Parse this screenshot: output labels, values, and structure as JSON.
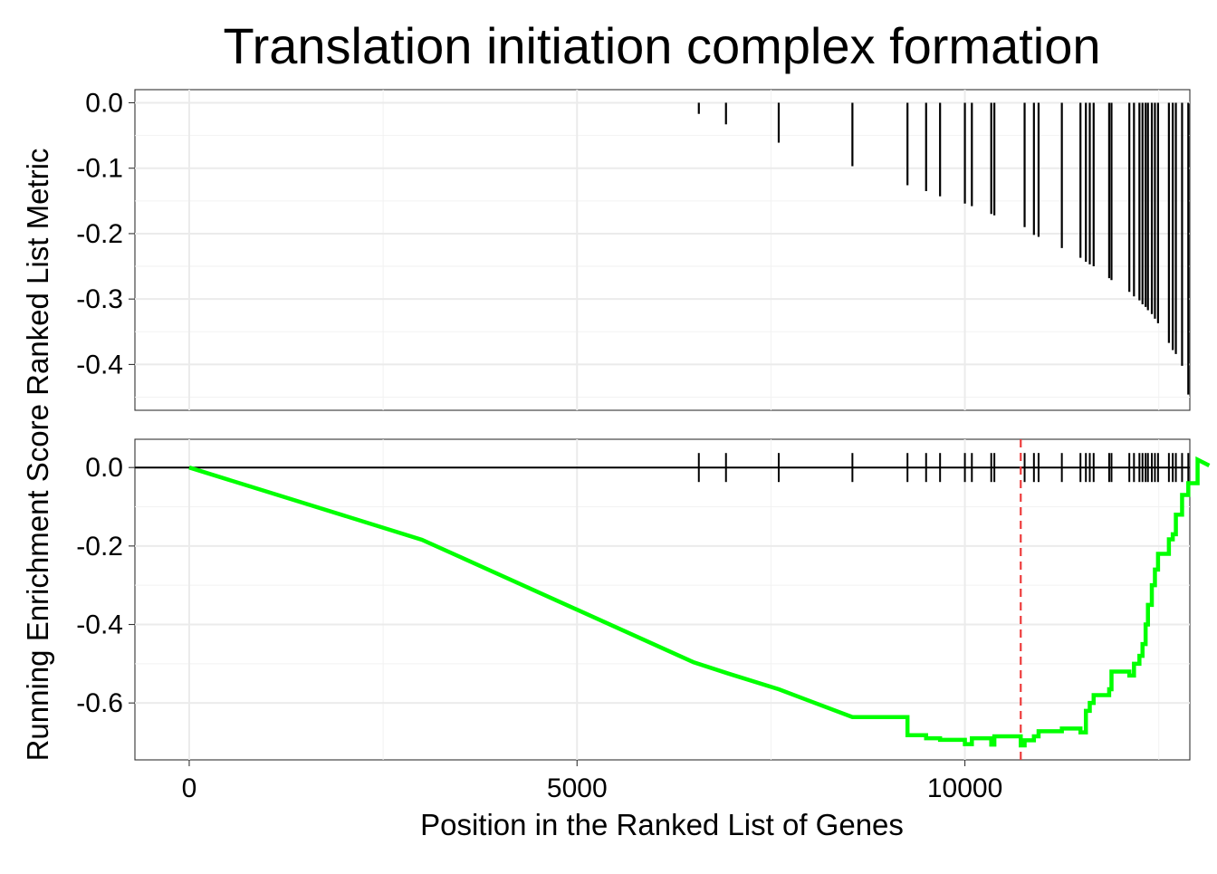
{
  "chart_data": [
    {
      "panel": "ranked-metric",
      "type": "bar",
      "title": "Translation initiation complex formation",
      "ylabel": "Ranked List Metric",
      "xlim": [
        -700,
        12900
      ],
      "ylim": [
        -0.47,
        0.02
      ],
      "yticks": [
        0.0,
        -0.1,
        -0.2,
        -0.3,
        -0.4
      ],
      "ytick_labels": [
        "0.0",
        "-0.1",
        "-0.2",
        "-0.3",
        "-0.4"
      ],
      "x_gridlines": [
        0,
        2500,
        5000,
        7500,
        10000,
        12500
      ],
      "grid": true,
      "hits": [
        {
          "x": 6570,
          "y": -0.017
        },
        {
          "x": 6920,
          "y": -0.033
        },
        {
          "x": 7600,
          "y": -0.061
        },
        {
          "x": 8550,
          "y": -0.097
        },
        {
          "x": 9260,
          "y": -0.126
        },
        {
          "x": 9500,
          "y": -0.135
        },
        {
          "x": 9680,
          "y": -0.143
        },
        {
          "x": 10000,
          "y": -0.154
        },
        {
          "x": 10090,
          "y": -0.158
        },
        {
          "x": 10340,
          "y": -0.17
        },
        {
          "x": 10380,
          "y": -0.172
        },
        {
          "x": 10770,
          "y": -0.19
        },
        {
          "x": 10890,
          "y": -0.202
        },
        {
          "x": 10950,
          "y": -0.205
        },
        {
          "x": 11250,
          "y": -0.222
        },
        {
          "x": 11490,
          "y": -0.237
        },
        {
          "x": 11560,
          "y": -0.243
        },
        {
          "x": 11610,
          "y": -0.247
        },
        {
          "x": 11660,
          "y": -0.25
        },
        {
          "x": 11860,
          "y": -0.268
        },
        {
          "x": 11890,
          "y": -0.271
        },
        {
          "x": 12120,
          "y": -0.289
        },
        {
          "x": 12180,
          "y": -0.296
        },
        {
          "x": 12250,
          "y": -0.302
        },
        {
          "x": 12290,
          "y": -0.308
        },
        {
          "x": 12330,
          "y": -0.312
        },
        {
          "x": 12360,
          "y": -0.317
        },
        {
          "x": 12410,
          "y": -0.323
        },
        {
          "x": 12450,
          "y": -0.33
        },
        {
          "x": 12490,
          "y": -0.337
        },
        {
          "x": 12630,
          "y": -0.367
        },
        {
          "x": 12680,
          "y": -0.378
        },
        {
          "x": 12720,
          "y": -0.384
        },
        {
          "x": 12800,
          "y": -0.402
        },
        {
          "x": 12880,
          "y": -0.446
        }
      ]
    },
    {
      "panel": "running-enrichment",
      "type": "line",
      "xlabel": "Position in the Ranked List of Genes",
      "ylabel": "Running Enrichment Score",
      "xlim": [
        -700,
        12900
      ],
      "ylim": [
        -0.745,
        0.072
      ],
      "xticks": [
        0,
        5000,
        10000
      ],
      "xtick_labels": [
        "0",
        "5000",
        "10000"
      ],
      "yticks": [
        0.0,
        -0.2,
        -0.4,
        -0.6
      ],
      "ytick_labels": [
        "0.0",
        "-0.2",
        "-0.4",
        "-0.6"
      ],
      "grid": true,
      "zero_line": 0.0,
      "max_deviation_x": 10720,
      "max_deviation_color": "#ee3b3b",
      "line_color": "#00ff00",
      "series": [
        {
          "x": [
            0,
            3000,
            6500,
            6950,
            7600,
            8550,
            9260,
            9500,
            9680,
            10000,
            10090,
            10340,
            10380,
            10720,
            10770,
            10890,
            10950,
            11250,
            11490,
            11560,
            11610,
            11660,
            11860,
            11890,
            12120,
            12180,
            12250,
            12290,
            12330,
            12360,
            12410,
            12450,
            12490,
            12630,
            12680,
            12720,
            12800,
            12880,
            13000,
            13150
          ],
          "y": [
            0.0,
            -0.184,
            -0.496,
            -0.525,
            -0.565,
            -0.636,
            -0.682,
            -0.69,
            -0.694,
            -0.705,
            -0.69,
            -0.706,
            -0.685,
            -0.708,
            -0.695,
            -0.685,
            -0.672,
            -0.665,
            -0.675,
            -0.62,
            -0.6,
            -0.58,
            -0.565,
            -0.52,
            -0.53,
            -0.5,
            -0.48,
            -0.45,
            -0.4,
            -0.35,
            -0.3,
            -0.26,
            -0.22,
            -0.183,
            -0.17,
            -0.12,
            -0.07,
            -0.04,
            0.02,
            0.005
          ]
        }
      ],
      "hit_ticks": [
        6570,
        6920,
        7600,
        8550,
        9260,
        9500,
        9680,
        10000,
        10090,
        10340,
        10380,
        10770,
        10890,
        10950,
        11250,
        11490,
        11560,
        11610,
        11660,
        11860,
        11890,
        12120,
        12180,
        12250,
        12290,
        12330,
        12360,
        12410,
        12450,
        12490,
        12630,
        12680,
        12720,
        12800,
        12880
      ]
    }
  ],
  "colors": {
    "enrichment_line": "#00ff00",
    "max_line": "#ee3b3b",
    "bars": "#000000",
    "grid": "#ebebeb"
  }
}
